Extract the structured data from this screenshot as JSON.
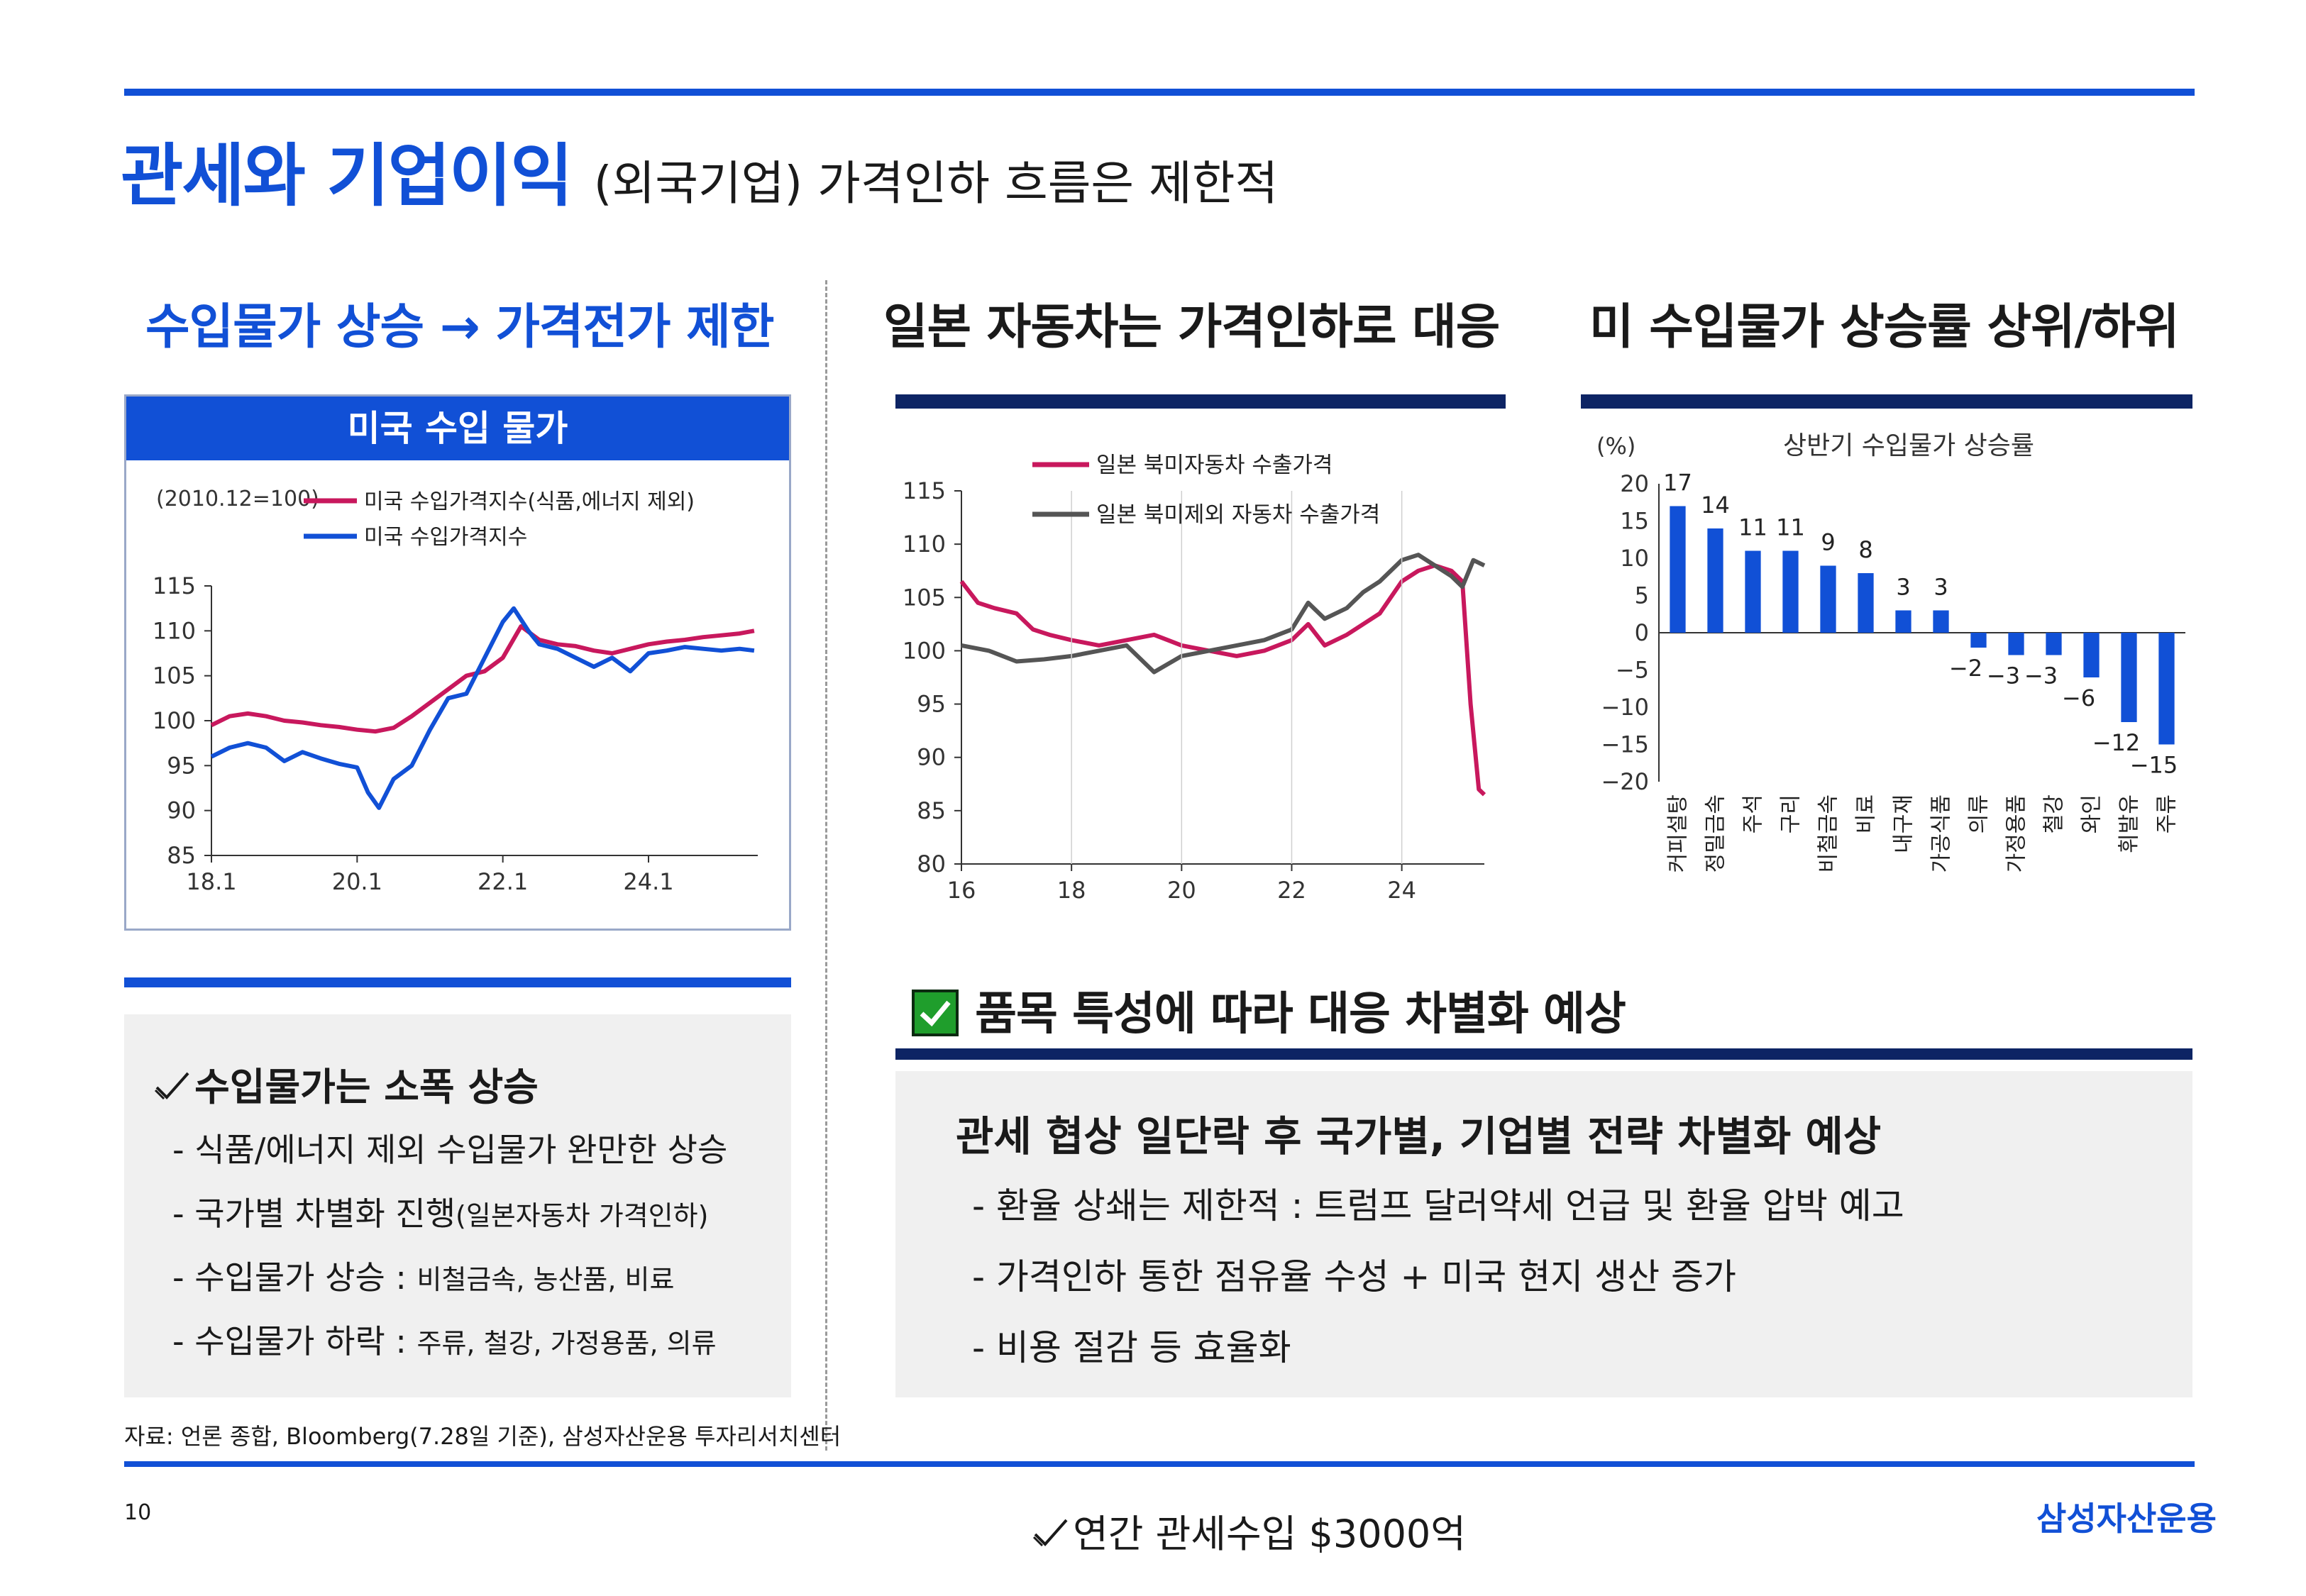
{
  "header": {
    "title_main": "관세와 기업이익",
    "title_sub": "(외국기업) 가격인하 흐름은 제한적"
  },
  "left": {
    "heading": "수입물가 상승 → 가격전가 제한",
    "chart_title": "미국 수입 물가",
    "bullets": {
      "head": "수입물가는 소폭 상승",
      "items": [
        {
          "main": "- 식품/에너지 제외 수입물가 완만한 상승",
          "small": ""
        },
        {
          "main": "- 국가별 차별화 진행",
          "small": "(일본자동차 가격인하)"
        },
        {
          "main": "- 수입물가 상승 : ",
          "small": "비철금속, 농산품, 비료"
        },
        {
          "main": "- 수입물가 하락 : ",
          "small": "주류, 철강, 가정용품, 의류"
        }
      ]
    }
  },
  "middle": {
    "heading": "일본 자동차는 가격인하로 대응"
  },
  "right": {
    "heading": "미 수입물가 상승률 상위/하위"
  },
  "lower": {
    "heading": "품목 특성에 따라 대응 차별화 예상",
    "box_head": "관세 협상 일단락 후 국가별, 기업별 전략 차별화 예상",
    "items": [
      "- 환율 상쇄는 제한적 : 트럼프 달러약세 언급 및 환율 압박 예고",
      "- 가격인하 통한 점유율 수성 + 미국 현지 생산 증가",
      "- 비용 절감 등 효율화"
    ]
  },
  "footer": {
    "source": "자료: 언론 종합, Bloomberg(7.28일 기준), 삼성자산운용 투자리서치센터",
    "page_number": "10",
    "note": "연간 관세수입 $3000억",
    "brand": "삼성자산운용"
  },
  "colors": {
    "blue": "#1150d6",
    "navy": "#0d2464",
    "magenta": "#c8185d",
    "gray_line": "#555555",
    "green_check": "#1f9e2c"
  },
  "chart_data": [
    {
      "type": "line",
      "title": "미국 수입 물가",
      "annotation": "(2010.12=100)",
      "x_ticks": [
        "18.1",
        "20.1",
        "22.1",
        "24.1"
      ],
      "ylim": [
        85,
        115
      ],
      "y_ticks": [
        85,
        90,
        95,
        100,
        105,
        110,
        115
      ],
      "x_range": [
        2018.0,
        2025.5
      ],
      "series": [
        {
          "name": "미국 수입가격지수(식품,에너지 제외)",
          "color": "#c8185d",
          "x": [
            2018.0,
            2018.25,
            2018.5,
            2018.75,
            2019.0,
            2019.25,
            2019.5,
            2019.75,
            2020.0,
            2020.25,
            2020.5,
            2020.75,
            2021.0,
            2021.25,
            2021.5,
            2021.75,
            2022.0,
            2022.25,
            2022.5,
            2022.75,
            2023.0,
            2023.25,
            2023.5,
            2023.75,
            2024.0,
            2024.25,
            2024.5,
            2024.75,
            2025.0,
            2025.25,
            2025.45
          ],
          "y": [
            99.5,
            100.5,
            100.8,
            100.5,
            100.0,
            99.8,
            99.5,
            99.3,
            99.0,
            98.8,
            99.2,
            100.5,
            102.0,
            103.5,
            105.0,
            105.5,
            107.0,
            110.5,
            109.0,
            108.5,
            108.3,
            107.8,
            107.5,
            108.0,
            108.5,
            108.8,
            109.0,
            109.3,
            109.5,
            109.7,
            110.0
          ]
        },
        {
          "name": "미국 수입가격지수",
          "color": "#1150d6",
          "x": [
            2018.0,
            2018.25,
            2018.5,
            2018.75,
            2019.0,
            2019.25,
            2019.5,
            2019.75,
            2020.0,
            2020.15,
            2020.3,
            2020.5,
            2020.75,
            2021.0,
            2021.25,
            2021.5,
            2021.75,
            2022.0,
            2022.15,
            2022.35,
            2022.5,
            2022.75,
            2023.0,
            2023.25,
            2023.5,
            2023.75,
            2024.0,
            2024.25,
            2024.5,
            2024.75,
            2025.0,
            2025.25,
            2025.45
          ],
          "y": [
            96.0,
            97.0,
            97.5,
            97.0,
            95.5,
            96.5,
            95.8,
            95.2,
            94.8,
            92.0,
            90.3,
            93.5,
            95.0,
            99.0,
            102.5,
            103.0,
            107.0,
            111.0,
            112.5,
            110.0,
            108.5,
            108.0,
            107.0,
            106.0,
            107.0,
            105.5,
            107.5,
            107.8,
            108.2,
            108.0,
            107.8,
            108.0,
            107.8
          ]
        }
      ]
    },
    {
      "type": "line",
      "x_ticks": [
        "16",
        "18",
        "20",
        "22",
        "24"
      ],
      "ylim": [
        80,
        115
      ],
      "y_ticks": [
        80,
        85,
        90,
        95,
        100,
        105,
        110,
        115
      ],
      "x_range": [
        2016.0,
        2025.5
      ],
      "series": [
        {
          "name": "일본 북미자동차 수출가격",
          "color": "#c8185d",
          "x": [
            2016.0,
            2016.3,
            2016.6,
            2017.0,
            2017.3,
            2017.6,
            2018.0,
            2018.5,
            2019.0,
            2019.5,
            2020.0,
            2020.5,
            2021.0,
            2021.5,
            2022.0,
            2022.3,
            2022.6,
            2023.0,
            2023.3,
            2023.6,
            2024.0,
            2024.3,
            2024.6,
            2024.9,
            2025.1,
            2025.25,
            2025.4,
            2025.5
          ],
          "y": [
            106.5,
            104.5,
            104.0,
            103.5,
            102.0,
            101.5,
            101.0,
            100.5,
            101.0,
            101.5,
            100.5,
            100.0,
            99.5,
            100.0,
            101.0,
            102.5,
            100.5,
            101.5,
            102.5,
            103.5,
            106.5,
            107.5,
            108.0,
            107.5,
            106.5,
            95.0,
            87.0,
            86.5
          ]
        },
        {
          "name": "일본 북미제외 자동차 수출가격",
          "color": "#555555",
          "x": [
            2016.0,
            2016.5,
            2017.0,
            2017.5,
            2018.0,
            2018.5,
            2019.0,
            2019.5,
            2020.0,
            2020.5,
            2021.0,
            2021.5,
            2022.0,
            2022.3,
            2022.6,
            2023.0,
            2023.3,
            2023.6,
            2024.0,
            2024.3,
            2024.6,
            2024.9,
            2025.1,
            2025.3,
            2025.5
          ],
          "y": [
            100.5,
            100.0,
            99.0,
            99.2,
            99.5,
            100.0,
            100.5,
            98.0,
            99.5,
            100.0,
            100.5,
            101.0,
            102.0,
            104.5,
            103.0,
            104.0,
            105.5,
            106.5,
            108.5,
            109.0,
            108.0,
            107.0,
            106.0,
            108.5,
            108.0
          ]
        }
      ]
    },
    {
      "type": "bar",
      "title": "상반기 수입물가 상승률",
      "ylabel": "(%)",
      "ylim": [
        -20,
        20
      ],
      "y_ticks": [
        20,
        15,
        10,
        5,
        0,
        -5,
        -10,
        -15,
        -20
      ],
      "categories": [
        "커피설탕",
        "정밀금속",
        "주석",
        "구리",
        "비철금속",
        "비료",
        "내구재",
        "가공식품",
        "의류",
        "가정용품",
        "철강",
        "와인",
        "휘발유",
        "주류"
      ],
      "values": [
        17,
        14,
        11,
        11,
        9,
        8,
        3,
        3,
        -2,
        -3,
        -3,
        -6,
        -12,
        -15
      ],
      "color": "#1150d6"
    }
  ]
}
